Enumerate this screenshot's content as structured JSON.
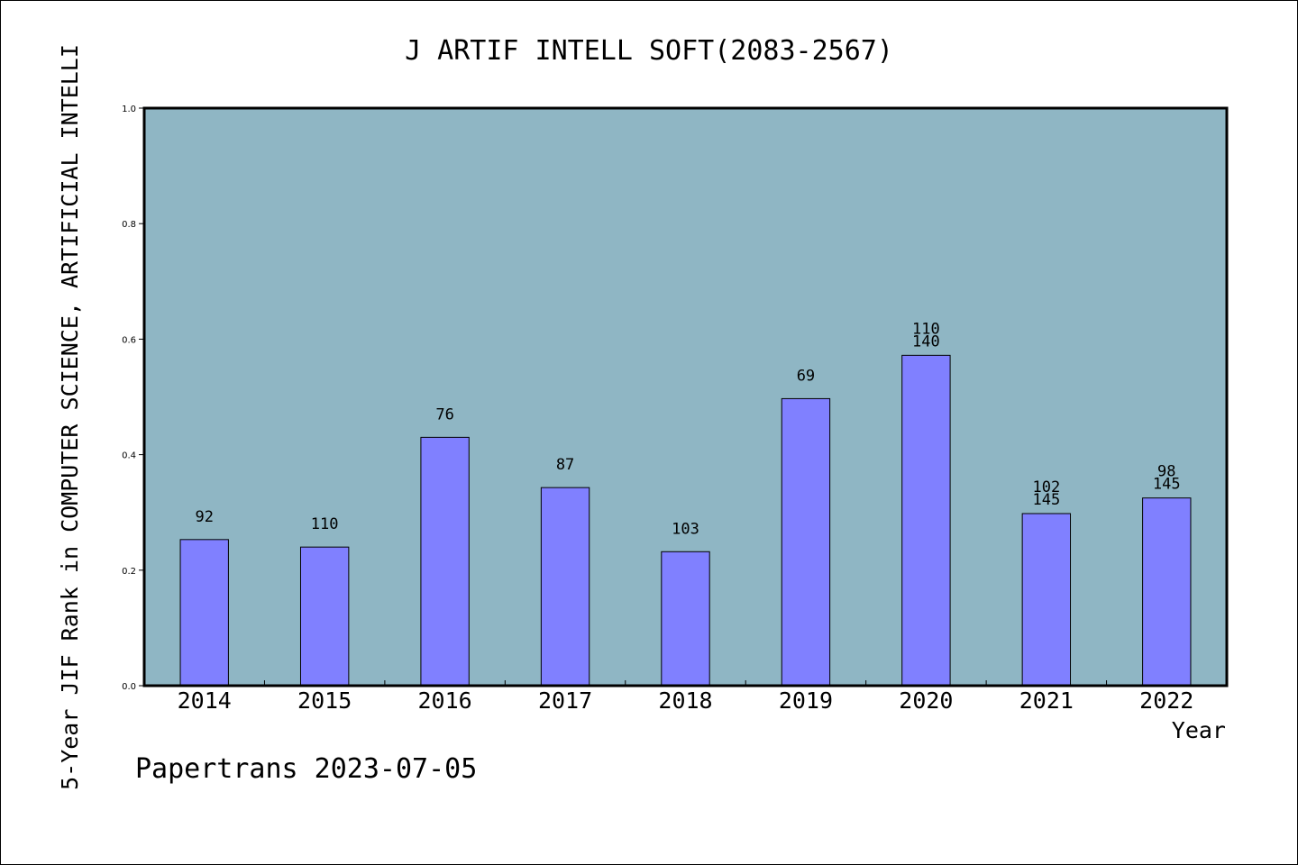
{
  "chart_data": {
    "type": "bar",
    "title": "J ARTIF INTELL SOFT(2083-2567)",
    "xlabel": "Year",
    "ylabel": "5-Year JIF Rank in COMPUTER SCIENCE, ARTIFICIAL INTELLI",
    "ylim": [
      0,
      1.0
    ],
    "yticks": [
      "0.0",
      "0.2",
      "0.4",
      "0.6",
      "0.8",
      "1.0"
    ],
    "categories": [
      "2014",
      "2015",
      "2016",
      "2017",
      "2018",
      "2019",
      "2020",
      "2021",
      "2022"
    ],
    "values": [
      0.253,
      0.24,
      0.43,
      0.343,
      0.232,
      0.497,
      0.572,
      0.298,
      0.325
    ],
    "bar_labels": [
      [
        "92"
      ],
      [
        "110"
      ],
      [
        "76"
      ],
      [
        "87"
      ],
      [
        "103"
      ],
      [
        "69"
      ],
      [
        "110",
        "140"
      ],
      [
        "102",
        "145"
      ],
      [
        "98",
        "145"
      ]
    ],
    "grid": false,
    "colors": {
      "plot_bg": "#8fb6c4",
      "bar": "#8080ff"
    }
  },
  "footer": {
    "text": "Papertrans 2023-07-05"
  }
}
